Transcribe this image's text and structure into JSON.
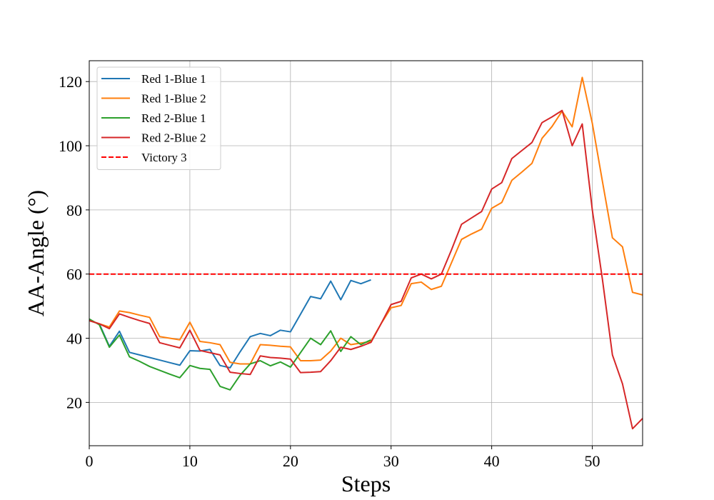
{
  "chart_data": {
    "type": "line",
    "title": "",
    "xlabel": "Steps",
    "ylabel": "AA-Angle (°)",
    "xlim": [
      0,
      55
    ],
    "ylim": [
      6.5,
      126.5
    ],
    "xticks": [
      0,
      10,
      20,
      30,
      40,
      50
    ],
    "yticks": [
      20,
      40,
      60,
      80,
      100,
      120
    ],
    "grid": true,
    "legend_position": "upper-left",
    "series": [
      {
        "name": "Red 1-Blue 1",
        "color": "#1f77b4",
        "style": "solid",
        "x": [
          0,
          1,
          2,
          3,
          4,
          5,
          6,
          7,
          8,
          9,
          10,
          11,
          12,
          13,
          14,
          15,
          16,
          17,
          18,
          19,
          20,
          21,
          22,
          23,
          24,
          25,
          26,
          27,
          28
        ],
        "y": [
          45.5,
          44.5,
          37.5,
          42.2,
          35.6,
          34.8,
          34.0,
          33.2,
          32.4,
          31.6,
          36.1,
          36.0,
          36.5,
          31.5,
          30.8,
          35.8,
          40.5,
          41.5,
          40.8,
          42.5,
          42.0,
          47.5,
          53.0,
          52.3,
          57.8,
          52.0,
          58.0,
          57.0,
          58.2
        ]
      },
      {
        "name": "Red 1-Blue 2",
        "color": "#ff7f0e",
        "style": "solid",
        "x": [
          0,
          1,
          2,
          3,
          4,
          5,
          6,
          7,
          8,
          9,
          10,
          11,
          12,
          13,
          14,
          15,
          16,
          17,
          18,
          19,
          20,
          21,
          22,
          23,
          24,
          25,
          26,
          27,
          28,
          29,
          30,
          31,
          32,
          33,
          34,
          35,
          36,
          37,
          38,
          39,
          40,
          41,
          42,
          43,
          44,
          45,
          46,
          47,
          48,
          49,
          50,
          51,
          52,
          53,
          54,
          55
        ],
        "y": [
          45.5,
          44.5,
          43.5,
          48.5,
          48.0,
          47.2,
          46.5,
          40.5,
          40.0,
          39.5,
          45.0,
          39.0,
          38.6,
          38.0,
          32.5,
          32.0,
          32.0,
          38.0,
          37.8,
          37.5,
          37.3,
          33.0,
          33.0,
          33.2,
          36.0,
          40.0,
          38.0,
          38.5,
          39.0,
          44.5,
          49.5,
          50.2,
          57.0,
          57.5,
          55.2,
          56.2,
          63.5,
          70.8,
          72.5,
          74.0,
          80.5,
          82.3,
          89.2,
          91.8,
          94.5,
          102.3,
          106.0,
          110.8,
          105.9,
          121.3,
          107.0,
          89.0,
          71.3,
          68.5,
          54.3,
          53.5
        ]
      },
      {
        "name": "Red 2-Blue 1",
        "color": "#2ca02c",
        "style": "solid",
        "x": [
          0,
          1,
          2,
          3,
          4,
          5,
          6,
          7,
          8,
          9,
          10,
          11,
          12,
          13,
          14,
          15,
          16,
          17,
          18,
          19,
          20,
          21,
          22,
          23,
          24,
          25,
          26,
          27,
          28
        ],
        "y": [
          46.0,
          44.2,
          37.2,
          41.0,
          34.2,
          32.8,
          31.2,
          30.0,
          28.8,
          27.7,
          31.5,
          30.6,
          30.3,
          25.0,
          23.9,
          28.5,
          32.0,
          33.0,
          31.4,
          32.6,
          31.0,
          35.5,
          40.0,
          38.0,
          42.3,
          35.9,
          40.5,
          38.0,
          39.5
        ]
      },
      {
        "name": "Red 2-Blue 2",
        "color": "#d62728",
        "style": "solid",
        "x": [
          0,
          1,
          2,
          3,
          4,
          5,
          6,
          7,
          8,
          9,
          10,
          11,
          12,
          13,
          14,
          15,
          16,
          17,
          18,
          19,
          20,
          21,
          22,
          23,
          24,
          25,
          26,
          27,
          28,
          29,
          30,
          31,
          32,
          33,
          34,
          35,
          36,
          37,
          38,
          39,
          40,
          41,
          42,
          43,
          44,
          45,
          46,
          47,
          48,
          49,
          50,
          51,
          52,
          53,
          54,
          55
        ],
        "y": [
          45.5,
          44.5,
          43.0,
          47.6,
          46.5,
          45.5,
          44.6,
          38.6,
          37.8,
          37.0,
          42.5,
          36.2,
          35.5,
          34.8,
          29.4,
          29.0,
          28.7,
          34.5,
          34.0,
          33.8,
          33.5,
          29.3,
          29.4,
          29.6,
          33.0,
          37.2,
          36.5,
          37.5,
          38.7,
          44.5,
          50.5,
          51.5,
          58.8,
          60.0,
          58.5,
          60.0,
          67.5,
          75.5,
          77.5,
          79.5,
          86.5,
          88.5,
          96.0,
          98.5,
          101.0,
          107.2,
          109.0,
          111.0,
          100.0,
          106.8,
          80.0,
          58.5,
          34.8,
          25.8,
          11.8,
          15.0
        ]
      },
      {
        "name": "Victory 3",
        "color": "#ff0000",
        "style": "dashed",
        "x": [
          0,
          55
        ],
        "y": [
          60,
          60
        ]
      }
    ]
  }
}
